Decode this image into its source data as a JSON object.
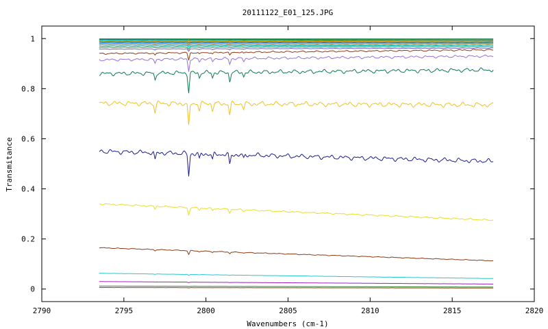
{
  "chart_data": {
    "type": "line",
    "title": "20111122_E01_125.JPG",
    "xlabel": "Wavenumbers (cm-1)",
    "ylabel": "Transmitance",
    "xlim": [
      2790,
      2820
    ],
    "ylim": [
      -0.05,
      1.05
    ],
    "x_ticks": [
      2790,
      2795,
      2800,
      2805,
      2810,
      2815,
      2820
    ],
    "y_ticks": [
      0,
      0.2,
      0.4,
      0.6,
      0.8,
      1
    ],
    "y_tick_labels": [
      "0",
      "0.2",
      "0.4",
      "0.6",
      "0.8",
      "1"
    ],
    "x_range_of_data": [
      2793.5,
      2817.5
    ],
    "grid": false,
    "legend": "none",
    "absorption_lines": [
      {
        "x": 2796.9,
        "depth": 0.35
      },
      {
        "x": 2798.95,
        "depth": 1.0
      },
      {
        "x": 2799.6,
        "depth": 0.25
      },
      {
        "x": 2800.4,
        "depth": 0.25
      },
      {
        "x": 2801.45,
        "depth": 0.45
      },
      {
        "x": 2802.3,
        "depth": 0.2
      }
    ],
    "series": [
      {
        "color": "#2e8b57",
        "start": 0.999,
        "end": 0.999,
        "line_depth": 0.0
      },
      {
        "color": "#8a2be2",
        "start": 0.997,
        "end": 0.996,
        "line_depth": 0.0
      },
      {
        "color": "#228b22",
        "start": 0.995,
        "end": 0.993,
        "line_depth": 0.002
      },
      {
        "color": "#00bfff",
        "start": 0.993,
        "end": 0.99,
        "line_depth": 0.002
      },
      {
        "color": "#ffa500",
        "start": 0.99,
        "end": 0.987,
        "line_depth": 0.003
      },
      {
        "color": "#006400",
        "start": 0.987,
        "end": 0.985,
        "line_depth": 0.003
      },
      {
        "color": "#1e90ff",
        "start": 0.983,
        "end": 0.981,
        "line_depth": 0.004
      },
      {
        "color": "#b8860b",
        "start": 0.98,
        "end": 0.979,
        "line_depth": 0.005
      },
      {
        "color": "#4682b4",
        "start": 0.975,
        "end": 0.974,
        "line_depth": 0.005
      },
      {
        "color": "#00ced1",
        "start": 0.97,
        "end": 0.973,
        "line_depth": 0.006
      },
      {
        "color": "#2e8b57",
        "start": 0.965,
        "end": 0.968,
        "line_depth": 0.008
      },
      {
        "color": "#6a5acd",
        "start": 0.958,
        "end": 0.962,
        "line_depth": 0.01
      },
      {
        "color": "#8b3a0f",
        "start": 0.94,
        "end": 0.955,
        "line_depth": 0.03
      },
      {
        "color": "#9370db",
        "start": 0.915,
        "end": 0.93,
        "line_depth": 0.05
      },
      {
        "color": "#0a7a4a",
        "start": 0.86,
        "end": 0.875,
        "line_depth": 0.08
      },
      {
        "color": "#f0c020",
        "start": 0.742,
        "end": 0.735,
        "line_depth": 0.095
      },
      {
        "color": "#1a1a8c",
        "start": 0.55,
        "end": 0.51,
        "line_depth": 0.09
      },
      {
        "color": "#e8e020",
        "start": 0.34,
        "end": 0.275,
        "line_depth": 0.03
      },
      {
        "color": "#8b3a0f",
        "start": 0.165,
        "end": 0.113,
        "line_depth": 0.015
      },
      {
        "color": "#20c8d0",
        "start": 0.063,
        "end": 0.042,
        "line_depth": 0.004
      },
      {
        "color": "#a020c0",
        "start": 0.03,
        "end": 0.02,
        "line_depth": 0.002
      },
      {
        "color": "#2e7d32",
        "start": 0.012,
        "end": 0.008,
        "line_depth": 0.001
      },
      {
        "color": "#8b4513",
        "start": 0.006,
        "end": 0.004,
        "line_depth": 0.001
      }
    ]
  }
}
